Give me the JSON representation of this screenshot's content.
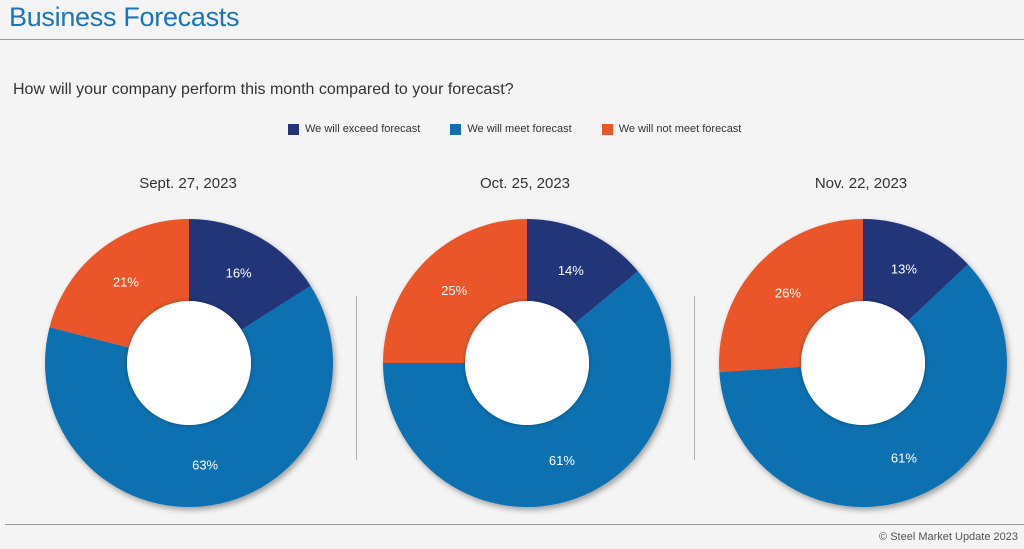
{
  "header": {
    "title": "Business Forecasts"
  },
  "question": "How will your company perform this month compared to your forecast?",
  "footer": "© Steel Market Update 2023",
  "colors": {
    "exceed": "#233479",
    "meet": "#1070b0",
    "not_meet": "#ea562a"
  },
  "chart_data": [
    {
      "type": "pie",
      "title": "Sept. 27, 2023",
      "categories": [
        "We will exceed forecast",
        "We will meet forecast",
        "We will not meet forecast"
      ],
      "values": [
        16,
        63,
        21
      ],
      "labels": [
        "16%",
        "63%",
        "21%"
      ]
    },
    {
      "type": "pie",
      "title": "Oct. 25, 2023",
      "categories": [
        "We will exceed forecast",
        "We will meet forecast",
        "We will not meet forecast"
      ],
      "values": [
        14,
        61,
        25
      ],
      "labels": [
        "14%",
        "61%",
        "25%"
      ]
    },
    {
      "type": "pie",
      "title": "Nov. 22, 2023",
      "categories": [
        "We will exceed forecast",
        "We will meet forecast",
        "We will not meet forecast"
      ],
      "values": [
        13,
        61,
        26
      ],
      "labels": [
        "13%",
        "61%",
        "26%"
      ]
    }
  ],
  "legend": [
    "We will exceed forecast",
    "We will meet forecast",
    "We will not meet forecast"
  ]
}
